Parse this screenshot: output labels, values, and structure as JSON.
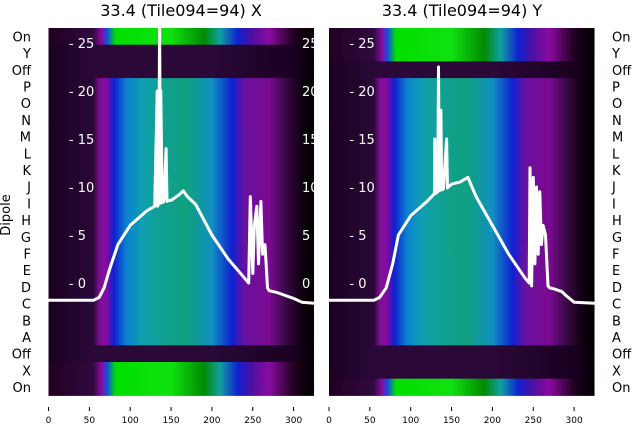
{
  "chart_data": [
    {
      "type": "heatmap",
      "title": "33.4 (Tile094=94) X",
      "ylabel": "Dipole",
      "row_labels": [
        "On",
        "Y",
        "Off",
        "P",
        "O",
        "N",
        "M",
        "L",
        "K",
        "J",
        "I",
        "H",
        "G",
        "F",
        "E",
        "D",
        "C",
        "B",
        "A",
        "Off",
        "X",
        "On"
      ],
      "row_types": [
        "on",
        "off",
        "off",
        "act",
        "act",
        "act",
        "act",
        "act",
        "act",
        "act",
        "act",
        "act",
        "act",
        "act",
        "act",
        "act",
        "act",
        "act",
        "act",
        "off",
        "on",
        "on"
      ],
      "xticks": [
        0,
        50,
        100,
        150,
        200,
        250,
        300
      ],
      "xlim": [
        0,
        325
      ],
      "inner_yticks": [
        0,
        5,
        10,
        15,
        20,
        25
      ],
      "inner_ylim": [
        -2.9,
        27.3
      ],
      "line": {
        "x": [
          0,
          55,
          62,
          68,
          75,
          85,
          100,
          120,
          130,
          133,
          133.5,
          135,
          136,
          137,
          137.5,
          139,
          140,
          141,
          144,
          145,
          146,
          150,
          160,
          165,
          170,
          180,
          200,
          220,
          240,
          245,
          247,
          250,
          252,
          255,
          257,
          260,
          262,
          265,
          268,
          270,
          280,
          290,
          300,
          310,
          325
        ],
        "y": [
          -1.8,
          -1.8,
          -1.5,
          -0.5,
          1.5,
          4,
          6,
          7.5,
          8,
          20,
          8,
          8.3,
          28,
          8.3,
          20,
          8.4,
          8.4,
          8.5,
          14,
          8.5,
          8.6,
          8.6,
          9.2,
          9.6,
          9,
          8.2,
          5,
          2.5,
          0.5,
          0,
          9,
          1,
          6,
          8,
          2,
          8.5,
          3,
          4,
          -0.5,
          -0.8,
          -1,
          -1.3,
          -1.6,
          -2,
          -2.1
        ]
      }
    },
    {
      "type": "heatmap",
      "title": "33.4 (Tile094=94) Y",
      "row_labels": [
        "On",
        "Y",
        "Off",
        "P",
        "O",
        "N",
        "M",
        "L",
        "K",
        "J",
        "I",
        "H",
        "G",
        "F",
        "E",
        "D",
        "C",
        "B",
        "A",
        "Off",
        "X",
        "On"
      ],
      "row_types": [
        "on",
        "on",
        "off",
        "act",
        "act",
        "act",
        "act",
        "act",
        "act",
        "act",
        "act",
        "act",
        "act",
        "act",
        "act",
        "act",
        "act",
        "act",
        "act",
        "off",
        "off",
        "on"
      ],
      "xticks": [
        0,
        50,
        100,
        150,
        200,
        250,
        300
      ],
      "xlim": [
        0,
        325
      ],
      "inner_yticks": [
        0,
        5,
        10,
        15,
        20,
        25
      ],
      "inner_ylim": [
        -2.9,
        27.3
      ],
      "line": {
        "x": [
          0,
          55,
          62,
          70,
          78,
          85,
          100,
          120,
          129,
          129.5,
          130,
          133,
          134,
          135,
          137,
          138,
          140,
          144,
          145,
          146,
          150,
          160,
          170,
          180,
          200,
          220,
          240,
          245,
          246,
          248,
          250,
          252,
          254,
          256,
          258,
          260,
          262,
          265,
          268,
          270,
          275,
          285,
          290,
          300,
          325
        ],
        "y": [
          -1.8,
          -1.8,
          -1.5,
          -0.5,
          2,
          5,
          7,
          8.5,
          9.3,
          15,
          9.3,
          9.5,
          22.5,
          9.6,
          18,
          9.7,
          9.8,
          15,
          9.9,
          10,
          10.3,
          10.5,
          11,
          9,
          6,
          3,
          0.5,
          0,
          12,
          -0.3,
          11,
          2,
          10,
          3,
          9.5,
          4,
          6,
          5,
          -0.3,
          -0.5,
          -0.6,
          -0.9,
          -1.3,
          -2,
          -2.1
        ]
      }
    }
  ],
  "colors": {
    "line": "#ffffff",
    "act": [
      [
        0,
        "#1a0020"
      ],
      [
        55,
        "#2a0838"
      ],
      [
        62,
        "#7a1090"
      ],
      [
        70,
        "#8a0aa0"
      ],
      [
        80,
        "#1020d0"
      ],
      [
        95,
        "#0a80d0"
      ],
      [
        115,
        "#10a0b0"
      ],
      [
        140,
        "#10a090"
      ],
      [
        170,
        "#10a080"
      ],
      [
        200,
        "#1090c0"
      ],
      [
        225,
        "#1020d0"
      ],
      [
        240,
        "#6a10a0"
      ],
      [
        270,
        "#7a0a90"
      ],
      [
        290,
        "#3a0848"
      ],
      [
        310,
        "#100010"
      ],
      [
        325,
        "#000000"
      ]
    ],
    "on": [
      [
        0,
        "#200020"
      ],
      [
        55,
        "#300a40"
      ],
      [
        65,
        "#8a0aa0"
      ],
      [
        72,
        "#1050e0"
      ],
      [
        82,
        "#00e000"
      ],
      [
        150,
        "#10e010"
      ],
      [
        190,
        "#008a00"
      ],
      [
        210,
        "#10a0a0"
      ],
      [
        232,
        "#1020d0"
      ],
      [
        250,
        "#5010a0"
      ],
      [
        270,
        "#8a0aa0"
      ],
      [
        300,
        "#200020"
      ],
      [
        325,
        "#000000"
      ]
    ],
    "off": [
      [
        0,
        "#1a0020"
      ],
      [
        55,
        "#2a0838"
      ],
      [
        200,
        "#2a0838"
      ],
      [
        300,
        "#1a0020"
      ],
      [
        325,
        "#050005"
      ]
    ]
  }
}
